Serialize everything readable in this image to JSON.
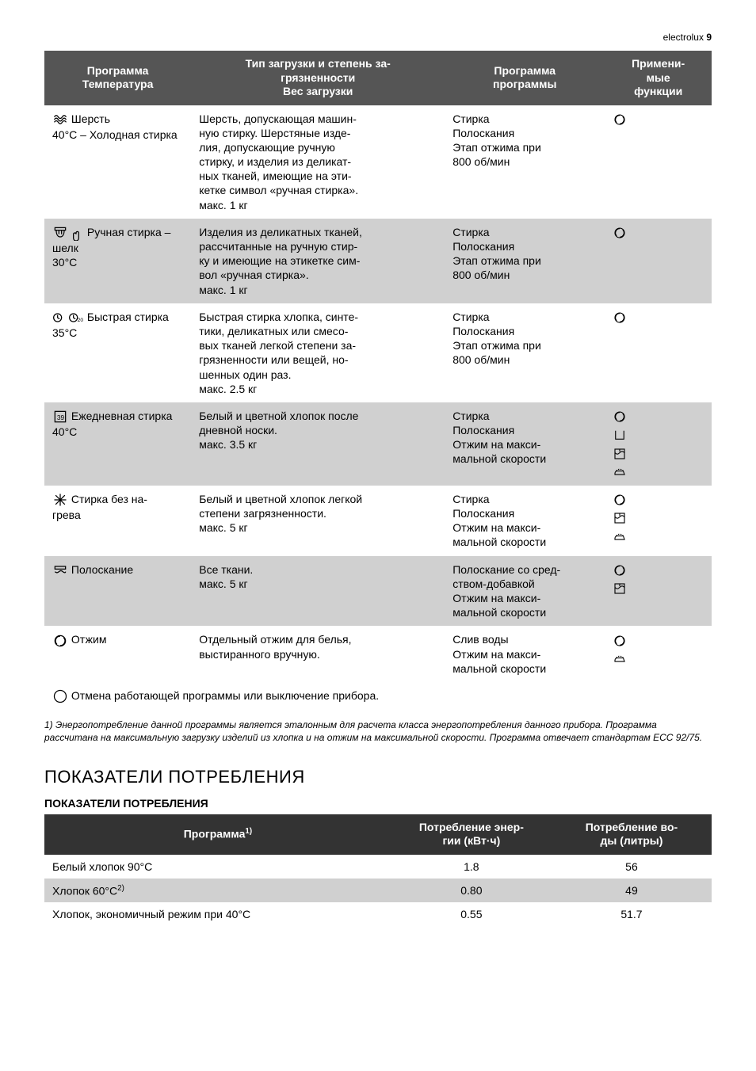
{
  "header": {
    "brand": "electrolux",
    "page": "9"
  },
  "washTable": {
    "headers": {
      "program": "Программа\nТемпература",
      "type": "Тип загрузки и степень за-\nгрязненности\nВес загрузки",
      "phase": "Программа\nпрограммы",
      "func": "Примени-\nмые\nфункции"
    },
    "rows": [
      {
        "bg": "light",
        "program_icon": "wool",
        "program": "Шерсть\n40°C – Холодная стирка",
        "type": "Шерсть, допускающая машин-\nную стирку. Шерстяные изде-\nлия, допускающие ручную\nстирку, и изделия из деликат-\nных тканей, имеющие на эти-\nкетке символ «ручная стирка».\nмакс. 1 кг",
        "phase": "Стирка\nПолоскания\nЭтап отжима при\n800 об/мин",
        "func_icons": [
          "spin"
        ]
      },
      {
        "bg": "dark",
        "program_icon": "hand",
        "program": "Ручная стирка – шелк\n30°C",
        "type": "Изделия из деликатных тканей,\nрассчитанные на ручную стир-\nку и имеющие на этикетке сим-\nвол «ручная стирка».\nмакс. 1 кг",
        "phase": "Стирка\nПолоскания\nЭтап отжима при\n800 об/мин",
        "func_icons": [
          "spin"
        ]
      },
      {
        "bg": "light",
        "program_icon": "quick",
        "program": "Быстрая стирка\n35°C",
        "type": "Быстрая стирка хлопка, синте-\nтики, деликатных или смесо-\nвых тканей легкой степени за-\nгрязненности или вещей, но-\nшенных один раз.\nмакс. 2.5 кг",
        "phase": "Стирка\nПолоскания\nЭтап отжима при\n800 об/мин",
        "func_icons": [
          "spin"
        ]
      },
      {
        "bg": "dark",
        "program_icon": "daily",
        "program": "Ежедневная стирка\n40°C",
        "type": "Белый и цветной хлопок после\nдневной носки.\nмакс. 3.5 кг",
        "phase": "Стирка\nПолоскания\nОтжим на макси-\nмальной скорости",
        "func_icons": [
          "spin",
          "rinse-hold",
          "extra-rinse",
          "easy-iron"
        ]
      },
      {
        "bg": "light",
        "program_icon": "cold",
        "program": "Стирка без на-\nгрева",
        "type": "Белый и цветной хлопок легкой\nстепени загрязненности.\nмакс. 5 кг",
        "phase": "Стирка\nПолоскания\nОтжим на макси-\nмальной скорости",
        "func_icons": [
          "spin",
          "extra-rinse",
          "easy-iron"
        ]
      },
      {
        "bg": "dark",
        "program_icon": "rinse",
        "program": "Полоскание",
        "type": "Все ткани.\nмакс. 5 кг",
        "phase": "Полоскание со сред-\nством-добавкой\nОтжим на макси-\nмальной скорости",
        "func_icons": [
          "spin",
          "extra-rinse"
        ]
      },
      {
        "bg": "light",
        "program_icon": "spin-prog",
        "program": "Отжим",
        "type": "Отдельный отжим для белья,\nвыстиранного вручную.",
        "phase": "Слив воды\nОтжим на макси-\nмальной скорости",
        "func_icons": [
          "spin",
          "easy-iron"
        ]
      }
    ],
    "footnoteRow": "Отмена работающей программы или выключение прибора.",
    "footnoteRowIcon": "off"
  },
  "footnote1": "1) Энергопотребление данной программы является эталонным для расчета класса энергопотребления данного прибора. Программа рассчитана на максимальную загрузку изделий из хлопка и на отжим на максимальной скорости. Программа отвечает стандартам ЕСС 92/75.",
  "section2": {
    "title": "ПОКАЗАТЕЛИ ПОТРЕБЛЕНИЯ",
    "subtitle": "ПОКАЗАТЕЛИ ПОТРЕБЛЕНИЯ",
    "headers": {
      "program": "Программа",
      "programSup": "1)",
      "energy": "Потребление энер-\nгии (кВт·ч)",
      "water": "Потребление во-\nды (литры)"
    },
    "rows": [
      {
        "bg": "light",
        "program": "Белый хлопок 90°C",
        "energy": "1.8",
        "water": "56"
      },
      {
        "bg": "dark",
        "program": "Хлопок 60°C",
        "programSup": "2)",
        "energy": "0.80",
        "water": "49"
      },
      {
        "bg": "light",
        "program": "Хлопок, экономичный режим при 40°C",
        "energy": "0.55",
        "water": "51.7"
      }
    ]
  },
  "iconGlyphs": {
    "spin": "◎",
    "rinse-hold": "⊔",
    "extra-rinse": "⧉",
    "easy-iron": "⤳",
    "off": "◯"
  }
}
